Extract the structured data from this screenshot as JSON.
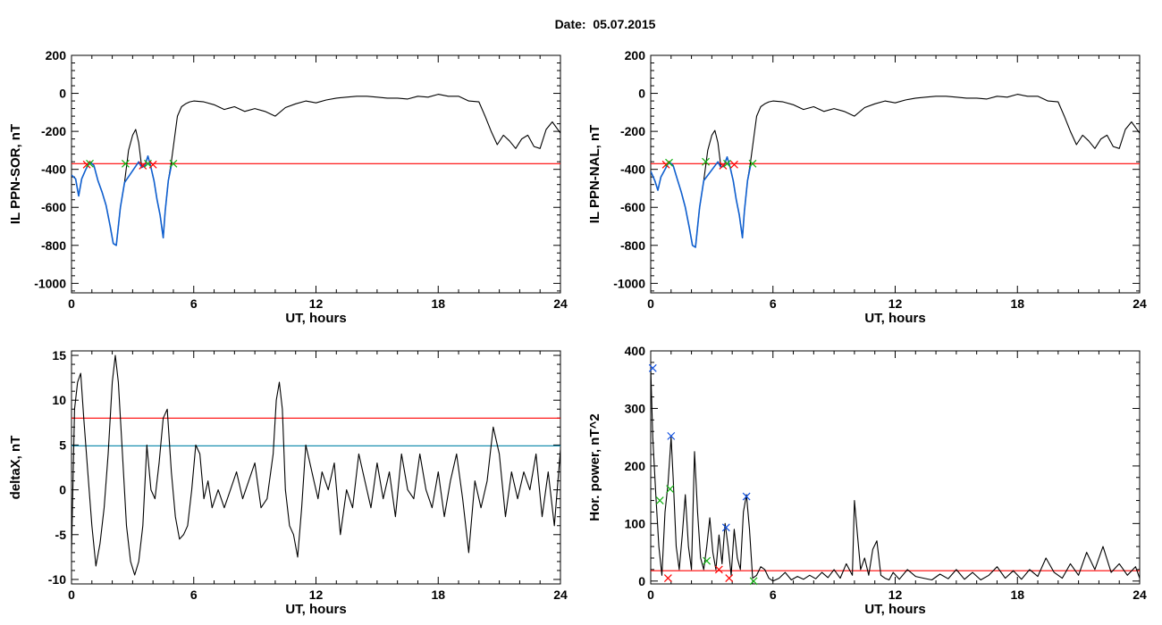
{
  "page": {
    "title": "Date:  05.07.2015"
  },
  "colors": {
    "data": "#000000",
    "selected": "#1060d0",
    "threshold": "#ff0000",
    "level2": "#1a8fb0",
    "marker_red": "#ff0000",
    "marker_green": "#10b010",
    "marker_blue": "#1050e0"
  },
  "chart_data": [
    {
      "id": "il_ppn_sor",
      "type": "line",
      "xlabel": "UT, hours",
      "ylabel": "IL PPN-SOR, nT",
      "xlim": [
        0,
        24
      ],
      "ylim": [
        -1050,
        200
      ],
      "xticks": [
        0,
        6,
        12,
        18,
        24
      ],
      "yticks": [
        200,
        0,
        -200,
        -400,
        -600,
        -800,
        -1000
      ],
      "grid": false,
      "series": [
        {
          "role": "data",
          "x": [
            0,
            0.2,
            0.35,
            0.5,
            0.7,
            0.9,
            1.1,
            1.3,
            1.5,
            1.7,
            1.9,
            2.05,
            2.2,
            2.4,
            2.6,
            2.8,
            3.0,
            3.15,
            3.3,
            3.45,
            3.6,
            3.75,
            3.9,
            4.05,
            4.2,
            4.35,
            4.5,
            4.6,
            4.75,
            4.9,
            5.05,
            5.2,
            5.4,
            5.6,
            5.8,
            6.0,
            6.5,
            7.0,
            7.5,
            8.0,
            8.5,
            9.0,
            9.5,
            10.0,
            10.5,
            11.0,
            11.5,
            12.0,
            12.5,
            13.0,
            13.5,
            14.0,
            14.5,
            15.0,
            15.5,
            16.0,
            16.5,
            17.0,
            17.5,
            18.0,
            18.5,
            19.0,
            19.5,
            20.0,
            20.3,
            20.6,
            20.9,
            21.2,
            21.5,
            21.8,
            22.1,
            22.4,
            22.7,
            23.0,
            23.3,
            23.6,
            24.0
          ],
          "y": [
            -430,
            -450,
            -540,
            -450,
            -400,
            -360,
            -380,
            -460,
            -520,
            -590,
            -700,
            -790,
            -800,
            -600,
            -470,
            -300,
            -220,
            -190,
            -260,
            -390,
            -380,
            -330,
            -390,
            -460,
            -560,
            -640,
            -760,
            -620,
            -460,
            -360,
            -240,
            -120,
            -70,
            -55,
            -45,
            -40,
            -45,
            -60,
            -85,
            -70,
            -95,
            -80,
            -95,
            -120,
            -75,
            -55,
            -40,
            -50,
            -35,
            -25,
            -20,
            -15,
            -15,
            -20,
            -25,
            -25,
            -30,
            -15,
            -20,
            -5,
            -15,
            -15,
            -40,
            -45,
            -120,
            -200,
            -270,
            -220,
            -250,
            -290,
            -240,
            -220,
            -280,
            -290,
            -190,
            -150,
            -210
          ]
        },
        {
          "role": "selected",
          "x": [
            0,
            0.2,
            0.35,
            0.5,
            0.7,
            0.9,
            1.1,
            1.3,
            1.5,
            1.7,
            1.9,
            2.05,
            2.2,
            2.4,
            2.6,
            3.3,
            3.45,
            3.6,
            3.75,
            3.9,
            4.05,
            4.2,
            4.35,
            4.5,
            4.6,
            4.75,
            4.9
          ],
          "y": [
            -430,
            -450,
            -540,
            -450,
            -400,
            -360,
            -380,
            -460,
            -520,
            -590,
            -700,
            -790,
            -800,
            -600,
            -470,
            -360,
            -390,
            -380,
            -330,
            -390,
            -460,
            -560,
            -640,
            -760,
            -620,
            -460,
            -380
          ]
        }
      ],
      "thresholds": [
        {
          "y": -370,
          "role": "threshold"
        }
      ],
      "markers": [
        {
          "x": 0.75,
          "y": -375,
          "role": "marker_red"
        },
        {
          "x": 0.9,
          "y": -370,
          "role": "marker_green"
        },
        {
          "x": 2.65,
          "y": -370,
          "role": "marker_green"
        },
        {
          "x": 3.5,
          "y": -380,
          "role": "marker_red"
        },
        {
          "x": 3.75,
          "y": -370,
          "role": "marker_green"
        },
        {
          "x": 4.0,
          "y": -375,
          "role": "marker_red"
        },
        {
          "x": 5.0,
          "y": -370,
          "role": "marker_green"
        }
      ]
    },
    {
      "id": "il_ppn_nal",
      "type": "line",
      "xlabel": "UT, hours",
      "ylabel": "IL PPN-NAL, nT",
      "xlim": [
        0,
        24
      ],
      "ylim": [
        -1050,
        200
      ],
      "xticks": [
        0,
        6,
        12,
        18,
        24
      ],
      "yticks": [
        200,
        0,
        -200,
        -400,
        -600,
        -800,
        -1000
      ],
      "grid": false,
      "series": [
        {
          "role": "data",
          "x": [
            0,
            0.2,
            0.35,
            0.5,
            0.7,
            0.9,
            1.1,
            1.3,
            1.5,
            1.7,
            1.9,
            2.05,
            2.2,
            2.4,
            2.6,
            2.8,
            3.0,
            3.15,
            3.3,
            3.45,
            3.6,
            3.75,
            3.9,
            4.05,
            4.2,
            4.35,
            4.5,
            4.6,
            4.75,
            4.9,
            5.05,
            5.2,
            5.4,
            5.6,
            5.8,
            6.0,
            6.5,
            7.0,
            7.5,
            8.0,
            8.5,
            9.0,
            9.5,
            10.0,
            10.5,
            11.0,
            11.5,
            12.0,
            12.5,
            13.0,
            13.5,
            14.0,
            14.5,
            15.0,
            15.5,
            16.0,
            16.5,
            17.0,
            17.5,
            18.0,
            18.5,
            19.0,
            19.5,
            20.0,
            20.3,
            20.6,
            20.9,
            21.2,
            21.5,
            21.8,
            22.1,
            22.4,
            22.7,
            23.0,
            23.3,
            23.6,
            24.0
          ],
          "y": [
            -410,
            -460,
            -510,
            -440,
            -400,
            -360,
            -380,
            -450,
            -520,
            -600,
            -710,
            -800,
            -810,
            -600,
            -460,
            -300,
            -220,
            -195,
            -260,
            -390,
            -380,
            -335,
            -390,
            -460,
            -560,
            -640,
            -760,
            -620,
            -460,
            -360,
            -240,
            -120,
            -70,
            -55,
            -45,
            -40,
            -45,
            -60,
            -85,
            -70,
            -95,
            -80,
            -95,
            -120,
            -75,
            -55,
            -40,
            -50,
            -35,
            -25,
            -20,
            -15,
            -15,
            -20,
            -25,
            -25,
            -30,
            -15,
            -20,
            -5,
            -15,
            -15,
            -40,
            -45,
            -120,
            -200,
            -270,
            -220,
            -250,
            -290,
            -240,
            -220,
            -280,
            -290,
            -190,
            -150,
            -210
          ]
        },
        {
          "role": "selected",
          "x": [
            0,
            0.2,
            0.35,
            0.5,
            0.7,
            0.9,
            1.1,
            1.3,
            1.5,
            1.7,
            1.9,
            2.05,
            2.2,
            2.4,
            2.6,
            3.3,
            3.45,
            3.6,
            3.75,
            3.9,
            4.05,
            4.2,
            4.35,
            4.5,
            4.6,
            4.75,
            4.9
          ],
          "y": [
            -410,
            -460,
            -510,
            -440,
            -400,
            -360,
            -380,
            -450,
            -520,
            -600,
            -710,
            -800,
            -810,
            -600,
            -460,
            -360,
            -390,
            -380,
            -335,
            -390,
            -460,
            -560,
            -640,
            -760,
            -620,
            -460,
            -380
          ]
        }
      ],
      "thresholds": [
        {
          "y": -370,
          "role": "threshold"
        }
      ],
      "markers": [
        {
          "x": 0.75,
          "y": -375,
          "role": "marker_red"
        },
        {
          "x": 0.9,
          "y": -365,
          "role": "marker_green"
        },
        {
          "x": 2.7,
          "y": -360,
          "role": "marker_green"
        },
        {
          "x": 3.55,
          "y": -380,
          "role": "marker_red"
        },
        {
          "x": 3.75,
          "y": -370,
          "role": "marker_green"
        },
        {
          "x": 4.1,
          "y": -375,
          "role": "marker_red"
        },
        {
          "x": 5.0,
          "y": -370,
          "role": "marker_green"
        }
      ]
    },
    {
      "id": "deltax",
      "type": "line",
      "xlabel": "UT, hours",
      "ylabel": "deltaX, nT",
      "xlim": [
        0,
        24
      ],
      "ylim": [
        -10.5,
        15.5
      ],
      "xticks": [
        0,
        6,
        12,
        18,
        24
      ],
      "yticks": [
        15,
        10,
        5,
        0,
        -5,
        -10
      ],
      "grid": false,
      "series": [
        {
          "role": "data",
          "x": [
            0,
            0.15,
            0.3,
            0.45,
            0.6,
            0.8,
            1.0,
            1.2,
            1.4,
            1.6,
            1.8,
            2.0,
            2.15,
            2.3,
            2.5,
            2.7,
            2.9,
            3.1,
            3.3,
            3.5,
            3.7,
            3.9,
            4.1,
            4.3,
            4.5,
            4.7,
            4.9,
            5.1,
            5.3,
            5.5,
            5.7,
            5.9,
            6.1,
            6.3,
            6.5,
            6.7,
            6.9,
            7.2,
            7.5,
            7.8,
            8.1,
            8.4,
            8.7,
            9.0,
            9.3,
            9.6,
            9.9,
            10.05,
            10.2,
            10.35,
            10.5,
            10.7,
            10.9,
            11.1,
            11.3,
            11.5,
            11.7,
            11.9,
            12.1,
            12.3,
            12.6,
            12.9,
            13.2,
            13.5,
            13.8,
            14.1,
            14.4,
            14.7,
            15.0,
            15.3,
            15.6,
            15.9,
            16.2,
            16.5,
            16.8,
            17.1,
            17.4,
            17.7,
            18.0,
            18.3,
            18.6,
            18.9,
            19.2,
            19.5,
            19.8,
            20.1,
            20.4,
            20.7,
            21.0,
            21.3,
            21.6,
            21.9,
            22.2,
            22.5,
            22.8,
            23.1,
            23.4,
            23.7,
            24.0
          ],
          "y": [
            -7,
            9,
            12,
            13,
            8,
            2,
            -4,
            -8.5,
            -6,
            -2,
            4,
            12,
            15,
            12,
            4,
            -4,
            -8,
            -9.5,
            -8,
            -4,
            5,
            0,
            -1,
            3,
            8,
            9,
            2,
            -3,
            -5.5,
            -5,
            -4,
            0,
            5,
            4,
            -1,
            1,
            -2,
            0,
            -2,
            0,
            2,
            -1,
            1,
            3,
            -2,
            -1,
            4,
            10,
            12,
            9,
            0,
            -4,
            -5,
            -7.5,
            -2,
            5,
            3,
            1,
            -1,
            2,
            0,
            3,
            -5,
            0,
            -2,
            4,
            1,
            -2,
            3,
            -1,
            2,
            -3,
            4,
            0,
            -1,
            4,
            0,
            -2,
            2,
            -3,
            1,
            4,
            -1,
            -7,
            1,
            -2,
            1,
            7,
            4,
            -3,
            2,
            -1,
            2,
            0,
            4,
            -3,
            2,
            -4,
            4.5
          ]
        }
      ],
      "thresholds": [
        {
          "y": 8,
          "role": "threshold"
        },
        {
          "y": 4.9,
          "role": "level2"
        }
      ],
      "markers": []
    },
    {
      "id": "hor_power",
      "type": "line",
      "xlabel": "UT, hours",
      "ylabel": "Hor. power, nT^2",
      "xlim": [
        0,
        24
      ],
      "ylim": [
        -5,
        400
      ],
      "xticks": [
        0,
        6,
        12,
        18,
        24
      ],
      "yticks": [
        0,
        100,
        200,
        300,
        400
      ],
      "grid": false,
      "series": [
        {
          "role": "data",
          "x": [
            0,
            0.1,
            0.25,
            0.4,
            0.55,
            0.7,
            0.85,
            1.0,
            1.1,
            1.25,
            1.4,
            1.55,
            1.7,
            1.85,
            2.0,
            2.15,
            2.3,
            2.45,
            2.6,
            2.75,
            2.9,
            3.05,
            3.2,
            3.35,
            3.5,
            3.65,
            3.8,
            3.95,
            4.1,
            4.25,
            4.4,
            4.55,
            4.7,
            4.85,
            5.0,
            5.2,
            5.4,
            5.6,
            5.8,
            6.0,
            6.3,
            6.6,
            6.9,
            7.2,
            7.5,
            7.8,
            8.1,
            8.4,
            8.7,
            9.0,
            9.3,
            9.6,
            9.9,
            10.0,
            10.15,
            10.3,
            10.5,
            10.7,
            10.9,
            11.1,
            11.3,
            11.5,
            11.7,
            11.9,
            12.2,
            12.6,
            13.0,
            13.4,
            13.8,
            14.2,
            14.6,
            15.0,
            15.4,
            15.8,
            16.2,
            16.6,
            17.0,
            17.4,
            17.8,
            18.2,
            18.6,
            19.0,
            19.4,
            19.8,
            20.2,
            20.6,
            21.0,
            21.4,
            21.8,
            22.2,
            22.6,
            23.0,
            23.4,
            23.8,
            24.0
          ],
          "y": [
            370,
            250,
            150,
            60,
            10,
            120,
            170,
            250,
            180,
            60,
            20,
            80,
            150,
            60,
            20,
            225,
            120,
            40,
            20,
            60,
            110,
            50,
            20,
            80,
            30,
            100,
            60,
            10,
            90,
            40,
            20,
            120,
            150,
            90,
            5,
            10,
            25,
            20,
            5,
            0,
            5,
            15,
            2,
            8,
            3,
            10,
            4,
            15,
            6,
            20,
            5,
            30,
            10,
            140,
            80,
            20,
            40,
            10,
            55,
            70,
            10,
            5,
            2,
            15,
            3,
            20,
            8,
            5,
            2,
            12,
            4,
            20,
            3,
            15,
            2,
            10,
            25,
            5,
            18,
            3,
            20,
            8,
            40,
            15,
            5,
            30,
            10,
            50,
            20,
            60,
            15,
            30,
            10,
            25,
            5
          ]
        }
      ],
      "thresholds": [
        {
          "y": 18,
          "role": "threshold"
        }
      ],
      "markers": [
        {
          "x": 0.1,
          "y": 370,
          "role": "marker_blue"
        },
        {
          "x": 0.45,
          "y": 140,
          "role": "marker_green"
        },
        {
          "x": 0.95,
          "y": 160,
          "role": "marker_green"
        },
        {
          "x": 1.0,
          "y": 252,
          "role": "marker_blue"
        },
        {
          "x": 0.85,
          "y": 5,
          "role": "marker_red"
        },
        {
          "x": 2.75,
          "y": 35,
          "role": "marker_green"
        },
        {
          "x": 3.35,
          "y": 20,
          "role": "marker_red"
        },
        {
          "x": 3.7,
          "y": 93,
          "role": "marker_blue"
        },
        {
          "x": 3.85,
          "y": 5,
          "role": "marker_red"
        },
        {
          "x": 4.7,
          "y": 147,
          "role": "marker_blue"
        },
        {
          "x": 5.05,
          "y": 0,
          "role": "marker_green"
        }
      ]
    }
  ]
}
